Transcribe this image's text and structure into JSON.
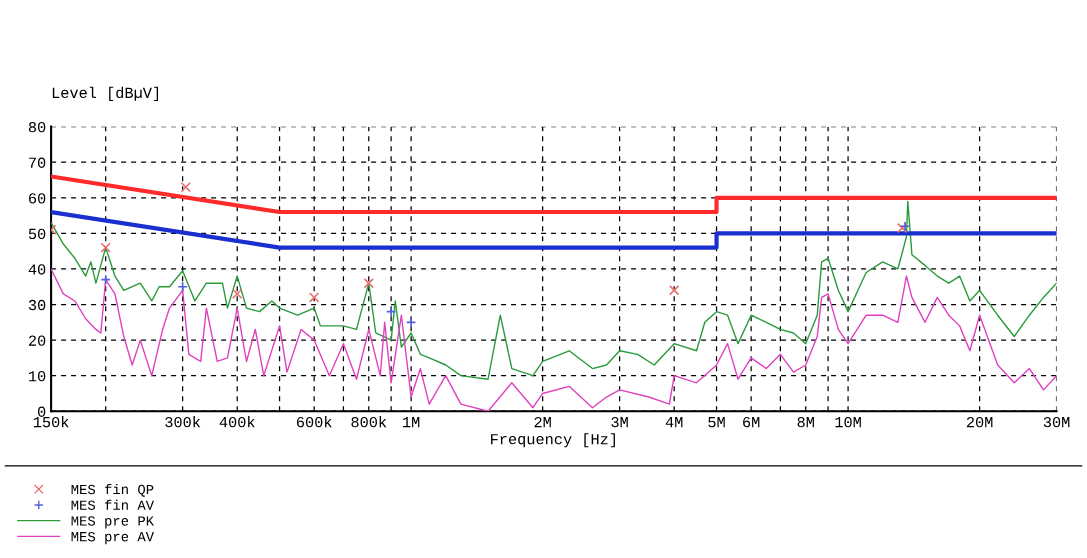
{
  "chart_data": {
    "type": "line",
    "xlabel": "Frequency [Hz]",
    "ylabel": "Level [dBµV]",
    "log": "x",
    "grid": true,
    "legend": "bottom",
    "xlim": [
      150000,
      30000000
    ],
    "ylim": [
      0,
      80
    ],
    "yticks": [
      0,
      10,
      20,
      30,
      40,
      50,
      60,
      70,
      80
    ],
    "xticks": [
      {
        "value": 150000,
        "label": "150k"
      },
      {
        "value": 200000,
        "label": null
      },
      {
        "value": 300000,
        "label": "300k"
      },
      {
        "value": 400000,
        "label": "400k"
      },
      {
        "value": 500000,
        "label": null
      },
      {
        "value": 600000,
        "label": "600k"
      },
      {
        "value": 700000,
        "label": null
      },
      {
        "value": 800000,
        "label": "800k"
      },
      {
        "value": 900000,
        "label": null
      },
      {
        "value": 1000000,
        "label": "1M"
      },
      {
        "value": 2000000,
        "label": "2M"
      },
      {
        "value": 3000000,
        "label": "3M"
      },
      {
        "value": 4000000,
        "label": "4M"
      },
      {
        "value": 5000000,
        "label": "5M"
      },
      {
        "value": 6000000,
        "label": "6M"
      },
      {
        "value": 7000000,
        "label": null
      },
      {
        "value": 8000000,
        "label": "8M"
      },
      {
        "value": 9000000,
        "label": null
      },
      {
        "value": 10000000,
        "label": "10M"
      },
      {
        "value": 20000000,
        "label": "20M"
      },
      {
        "value": 30000000,
        "label": "30M"
      }
    ],
    "series": [
      {
        "color": "#2a9a3a",
        "name": "MES pre PK",
        "marker": "none",
        "x": [
          150000,
          160000,
          170000,
          180000,
          185000,
          190000,
          200000,
          210000,
          220000,
          240000,
          255000,
          265000,
          280000,
          300000,
          320000,
          340000,
          370000,
          380000,
          400000,
          420000,
          450000,
          480000,
          500000,
          550000,
          600000,
          620000,
          700000,
          750000,
          800000,
          830000,
          900000,
          920000,
          950000,
          1000000,
          1050000,
          1100000,
          1200000,
          1300000,
          1500000,
          1600000,
          1700000,
          1900000,
          2000000,
          2300000,
          2600000,
          2800000,
          3000000,
          3300000,
          3600000,
          4000000,
          4500000,
          4700000,
          5000000,
          5300000,
          5600000,
          6000000,
          6500000,
          7000000,
          7500000,
          8000000,
          8500000,
          8700000,
          9000000,
          9500000,
          10000000,
          11000000,
          12000000,
          13000000,
          13600000,
          13700000,
          14000000,
          15000000,
          16000000,
          17000000,
          18000000,
          19000000,
          20000000,
          22000000,
          24000000,
          26000000,
          28000000,
          30000000
        ],
        "values": [
          53,
          47,
          43,
          38,
          42,
          36,
          46,
          38,
          34,
          36,
          31,
          35,
          35,
          39.5,
          31,
          36,
          36,
          29,
          38,
          29,
          28,
          31,
          29,
          27,
          29,
          24,
          24,
          23,
          36,
          22,
          20,
          31,
          18,
          22,
          16,
          15,
          13,
          10,
          9,
          27,
          12,
          10,
          14,
          17,
          12,
          13,
          17,
          16,
          13,
          19,
          17,
          25,
          28,
          27,
          19,
          27,
          25,
          23,
          22,
          19,
          27,
          42,
          43,
          34,
          28,
          39,
          42,
          40,
          49,
          59,
          44,
          41,
          38,
          36,
          38,
          31,
          34,
          27,
          21,
          27,
          32,
          36
        ]
      },
      {
        "color": "#e040c0",
        "name": "MES pre AV",
        "marker": "none",
        "x": [
          150000,
          160000,
          170000,
          180000,
          190000,
          195000,
          200000,
          210000,
          220000,
          230000,
          240000,
          255000,
          270000,
          280000,
          300000,
          310000,
          330000,
          340000,
          360000,
          380000,
          400000,
          420000,
          440000,
          460000,
          500000,
          520000,
          560000,
          600000,
          650000,
          700000,
          750000,
          800000,
          850000,
          870000,
          900000,
          950000,
          1000000,
          1050000,
          1100000,
          1200000,
          1300000,
          1500000,
          1700000,
          1900000,
          2000000,
          2300000,
          2600000,
          2800000,
          3000000,
          3500000,
          3900000,
          4000000,
          4500000,
          5000000,
          5300000,
          5600000,
          6000000,
          6500000,
          7000000,
          7500000,
          8000000,
          8500000,
          8700000,
          9000000,
          9500000,
          10000000,
          11000000,
          12000000,
          13000000,
          13600000,
          14000000,
          15000000,
          16000000,
          17000000,
          18000000,
          19000000,
          20000000,
          22000000,
          24000000,
          26000000,
          28000000,
          30000000
        ],
        "values": [
          40,
          33,
          31,
          26,
          23,
          22,
          37,
          33,
          21,
          13,
          20,
          10,
          23,
          29,
          34,
          16,
          14,
          29,
          14,
          15,
          29,
          14,
          23,
          10,
          24,
          11,
          23,
          20,
          10,
          19,
          9,
          23,
          10,
          25,
          8,
          27,
          4,
          12,
          2,
          10,
          2,
          0,
          8,
          1,
          5,
          7,
          1,
          4,
          6,
          4,
          2,
          10,
          8,
          13,
          19,
          9,
          15,
          12,
          16,
          11,
          13,
          21,
          32,
          33,
          23,
          19,
          27,
          27,
          25,
          38,
          32,
          25,
          32,
          27,
          24,
          17,
          27,
          13,
          8,
          12,
          6,
          10
        ]
      },
      {
        "type": "scatter",
        "color": "#e87070",
        "name": "MES fin QP",
        "marker": "cross",
        "x": [
          150000,
          200000,
          305000,
          400000,
          600000,
          800000,
          4000000,
          13300000
        ],
        "values": [
          51,
          46,
          63,
          33,
          32,
          36,
          34,
          51.5
        ]
      },
      {
        "type": "scatter",
        "color": "#5060e0",
        "name": "MES fin AV",
        "marker": "plus",
        "x": [
          200000,
          300000,
          900000,
          1000000,
          13500000
        ],
        "values": [
          37,
          35,
          28,
          25,
          52
        ]
      },
      {
        "color": "#ff2a2a",
        "marker": "none",
        "x": [
          150000,
          500000,
          5000000,
          5000000,
          30000000
        ],
        "values": [
          66,
          56,
          56,
          60,
          60
        ]
      },
      {
        "color": "#1a2fd0",
        "marker": "none",
        "x": [
          150000,
          500000,
          5000000,
          5000000,
          30000000
        ],
        "values": [
          56,
          46,
          46,
          50,
          50
        ]
      }
    ]
  }
}
